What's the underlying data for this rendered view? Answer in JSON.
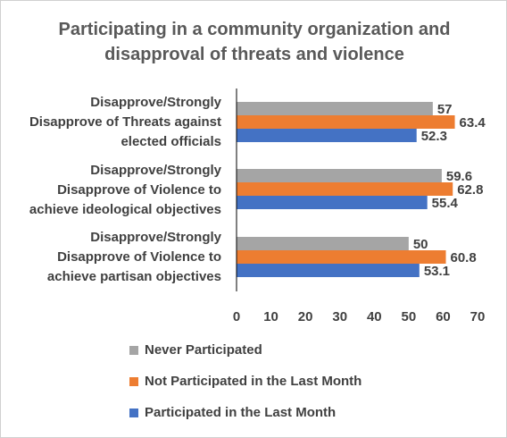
{
  "chart_data": {
    "type": "bar",
    "orientation": "horizontal",
    "title_lines": [
      "Participating in a community organization and",
      "disapproval of threats and violence"
    ],
    "categories": [
      {
        "lines": [
          "Disapprove/Strongly",
          "Disapprove of Threats against",
          "elected officials"
        ]
      },
      {
        "lines": [
          "Disapprove/Strongly",
          "Disapprove of Violence to",
          "achieve ideological objectives"
        ]
      },
      {
        "lines": [
          "Disapprove/Strongly",
          "Disapprove of Violence to",
          "achieve partisan objectives"
        ]
      }
    ],
    "series": [
      {
        "name": "Never Participated",
        "color": "#a5a5a5",
        "values": [
          57,
          59.6,
          50
        ]
      },
      {
        "name": "Not Participated in the Last Month",
        "color": "#ed7d31",
        "values": [
          63.4,
          62.8,
          60.8
        ]
      },
      {
        "name": "Participated in the Last Month",
        "color": "#4472c4",
        "values": [
          52.3,
          55.4,
          53.1
        ]
      }
    ],
    "data_labels": [
      [
        "57",
        "59.6",
        "50"
      ],
      [
        "63.4",
        "62.8",
        "60.8"
      ],
      [
        "52.3",
        "55.4",
        "53.1"
      ]
    ],
    "xlim": [
      0,
      70
    ],
    "xticks": [
      "0",
      "10",
      "20",
      "30",
      "40",
      "50",
      "60",
      "70"
    ],
    "grid": false,
    "legend_position": "bottom"
  }
}
